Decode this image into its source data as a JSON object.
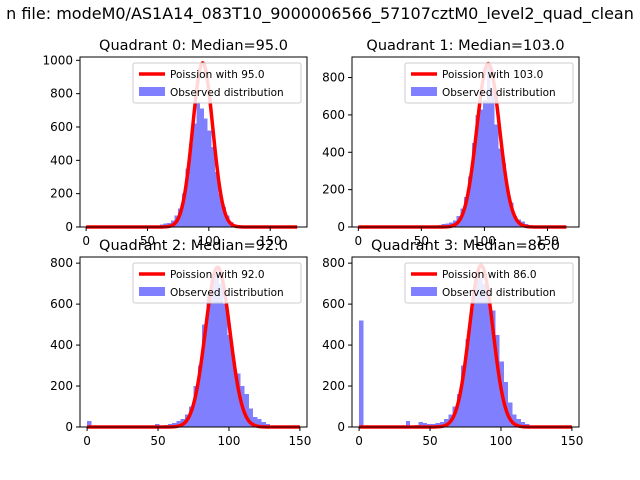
{
  "suptitle": "n file: modeM0/AS1A14_083T10_9000006566_57107cztM0_level2_quad_clean",
  "colors": {
    "bar": "#8080ff",
    "fit": "#ff0000"
  },
  "chart_data": [
    {
      "type": "bar",
      "title": "Quadrant 0: Median=95.0",
      "median": 95.0,
      "xlim": [
        -5,
        180
      ],
      "ylim": [
        0,
        1020
      ],
      "xticks": [
        0,
        50,
        100,
        150
      ],
      "yticks": [
        0,
        200,
        400,
        600,
        800,
        1000
      ],
      "legend": {
        "fit_label": "Poission with 95.0",
        "hist_label": "Observed distribution",
        "position": "top-right"
      },
      "histogram": {
        "bin_width": 3,
        "bins": [
          [
            57,
            10
          ],
          [
            60,
            15
          ],
          [
            63,
            20
          ],
          [
            66,
            25
          ],
          [
            69,
            40
          ],
          [
            72,
            70
          ],
          [
            75,
            110
          ],
          [
            78,
            200
          ],
          [
            81,
            350
          ],
          [
            84,
            500
          ],
          [
            87,
            620
          ],
          [
            90,
            750
          ],
          [
            93,
            710
          ],
          [
            96,
            650
          ],
          [
            99,
            580
          ],
          [
            102,
            480
          ],
          [
            105,
            330
          ],
          [
            108,
            200
          ],
          [
            111,
            120
          ],
          [
            114,
            70
          ],
          [
            117,
            30
          ],
          [
            120,
            15
          ],
          [
            123,
            10
          ]
        ]
      },
      "fit_curve": {
        "mean": 95.0,
        "peak": 985,
        "sigma": 8.2,
        "range": [
          0,
          172
        ]
      }
    },
    {
      "type": "bar",
      "title": "Quadrant 1: Median=103.0",
      "median": 103.0,
      "xlim": [
        -5,
        175
      ],
      "ylim": [
        0,
        910
      ],
      "xticks": [
        0,
        50,
        100,
        150
      ],
      "yticks": [
        0,
        200,
        400,
        600,
        800
      ],
      "legend": {
        "fit_label": "Poission with 103.0",
        "hist_label": "Observed distribution",
        "position": "top-right"
      },
      "histogram": {
        "bin_width": 3,
        "bins": [
          [
            60,
            8
          ],
          [
            63,
            10
          ],
          [
            66,
            15
          ],
          [
            69,
            20
          ],
          [
            72,
            25
          ],
          [
            75,
            35
          ],
          [
            78,
            60
          ],
          [
            81,
            100
          ],
          [
            84,
            160
          ],
          [
            87,
            270
          ],
          [
            90,
            450
          ],
          [
            93,
            600
          ],
          [
            96,
            630
          ],
          [
            99,
            680
          ],
          [
            102,
            860
          ],
          [
            105,
            730
          ],
          [
            108,
            550
          ],
          [
            111,
            420
          ],
          [
            114,
            340
          ],
          [
            117,
            200
          ],
          [
            120,
            130
          ],
          [
            123,
            60
          ],
          [
            126,
            40
          ],
          [
            129,
            30
          ],
          [
            132,
            15
          ],
          [
            135,
            8
          ]
        ]
      },
      "fit_curve": {
        "mean": 103.0,
        "peak": 875,
        "sigma": 9.0,
        "range": [
          0,
          165
        ]
      }
    },
    {
      "type": "bar",
      "title": "Quadrant 2: Median=92.0",
      "median": 92.0,
      "xlim": [
        -5,
        155
      ],
      "ylim": [
        0,
        830
      ],
      "xticks": [
        0,
        50,
        100,
        150
      ],
      "yticks": [
        0,
        200,
        400,
        600,
        800
      ],
      "legend": {
        "fit_label": "Poission with 92.0",
        "hist_label": "Observed distribution",
        "position": "top-right"
      },
      "histogram": {
        "bin_width": 3,
        "bins": [
          [
            0,
            30
          ],
          [
            48,
            15
          ],
          [
            54,
            10
          ],
          [
            57,
            15
          ],
          [
            60,
            20
          ],
          [
            63,
            30
          ],
          [
            66,
            40
          ],
          [
            69,
            60
          ],
          [
            72,
            100
          ],
          [
            75,
            200
          ],
          [
            78,
            300
          ],
          [
            81,
            500
          ],
          [
            84,
            650
          ],
          [
            87,
            720
          ],
          [
            90,
            740
          ],
          [
            93,
            700
          ],
          [
            96,
            600
          ],
          [
            99,
            450
          ],
          [
            102,
            320
          ],
          [
            105,
            260
          ],
          [
            108,
            200
          ],
          [
            111,
            160
          ],
          [
            114,
            90
          ],
          [
            117,
            50
          ],
          [
            120,
            40
          ],
          [
            123,
            25
          ],
          [
            126,
            15
          ],
          [
            129,
            8
          ]
        ]
      },
      "fit_curve": {
        "mean": 92.0,
        "peak": 780,
        "sigma": 8.6,
        "range": [
          0,
          150
        ]
      }
    },
    {
      "type": "bar",
      "title": "Quadrant 3: Median=86.0",
      "median": 86.0,
      "xlim": [
        -5,
        155
      ],
      "ylim": [
        0,
        830
      ],
      "xticks": [
        0,
        50,
        100,
        150
      ],
      "yticks": [
        0,
        200,
        400,
        600,
        800
      ],
      "legend": {
        "fit_label": "Poission with 86.0",
        "hist_label": "Observed distribution",
        "position": "top-right"
      },
      "histogram": {
        "bin_width": 3,
        "bins": [
          [
            0,
            520
          ],
          [
            33,
            30
          ],
          [
            39,
            10
          ],
          [
            42,
            25
          ],
          [
            45,
            20
          ],
          [
            48,
            15
          ],
          [
            51,
            15
          ],
          [
            54,
            20
          ],
          [
            57,
            25
          ],
          [
            60,
            40
          ],
          [
            63,
            60
          ],
          [
            66,
            100
          ],
          [
            69,
            160
          ],
          [
            72,
            300
          ],
          [
            75,
            430
          ],
          [
            78,
            580
          ],
          [
            81,
            720
          ],
          [
            84,
            730
          ],
          [
            87,
            700
          ],
          [
            90,
            620
          ],
          [
            93,
            570
          ],
          [
            96,
            450
          ],
          [
            99,
            320
          ],
          [
            102,
            220
          ],
          [
            105,
            120
          ],
          [
            108,
            60
          ],
          [
            111,
            40
          ],
          [
            114,
            25
          ],
          [
            117,
            15
          ],
          [
            120,
            8
          ]
        ]
      },
      "fit_curve": {
        "mean": 86.0,
        "peak": 790,
        "sigma": 8.3,
        "range": [
          0,
          150
        ]
      }
    }
  ]
}
